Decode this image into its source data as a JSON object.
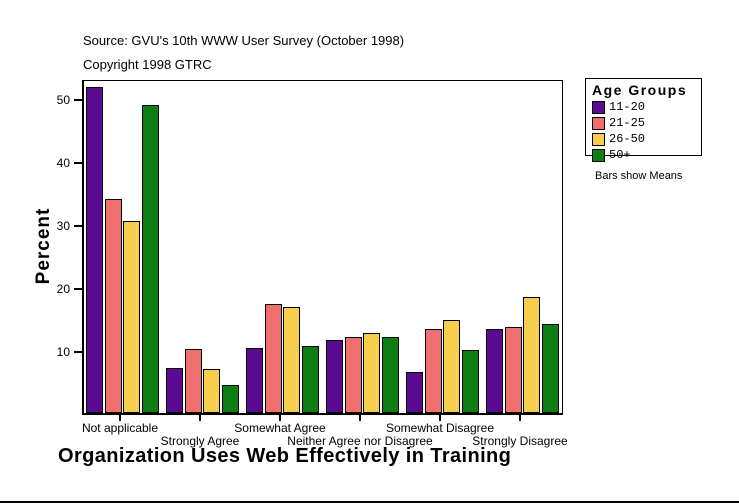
{
  "header": {
    "source": "Source: GVU's 10th WWW User Survey (October 1998)",
    "copyright": "Copyright 1998 GTRC"
  },
  "legend": {
    "title": "Age Groups",
    "note": "Bars show Means"
  },
  "chart_data": {
    "type": "bar",
    "title": "Organization Uses Web Effectively in Training",
    "ylabel": "Percent",
    "categories": [
      "Not applicable",
      "Strongly Agree",
      "Somewhat Agree",
      "Neither Agree nor Disagree",
      "Somewhat Disagree",
      "Strongly Disagree"
    ],
    "series": [
      {
        "name": "11-20",
        "color": "#5a0b8f",
        "values": [
          51.8,
          7.1,
          10.4,
          11.6,
          6.5,
          13.3
        ]
      },
      {
        "name": "21-25",
        "color": "#f07070",
        "values": [
          34.0,
          10.2,
          17.3,
          12.1,
          13.4,
          13.7
        ]
      },
      {
        "name": "26-50",
        "color": "#f5ce4e",
        "values": [
          30.5,
          7.0,
          16.8,
          12.7,
          14.8,
          18.5
        ]
      },
      {
        "name": "50+",
        "color": "#0d7e12",
        "values": [
          48.9,
          4.4,
          10.6,
          12.1,
          10.0,
          14.1
        ]
      }
    ],
    "yticks": [
      10,
      20,
      30,
      40,
      50
    ],
    "ylim": [
      0,
      53.2
    ],
    "grid": false,
    "legend_position": "right",
    "annotation": "Bars show Means"
  }
}
